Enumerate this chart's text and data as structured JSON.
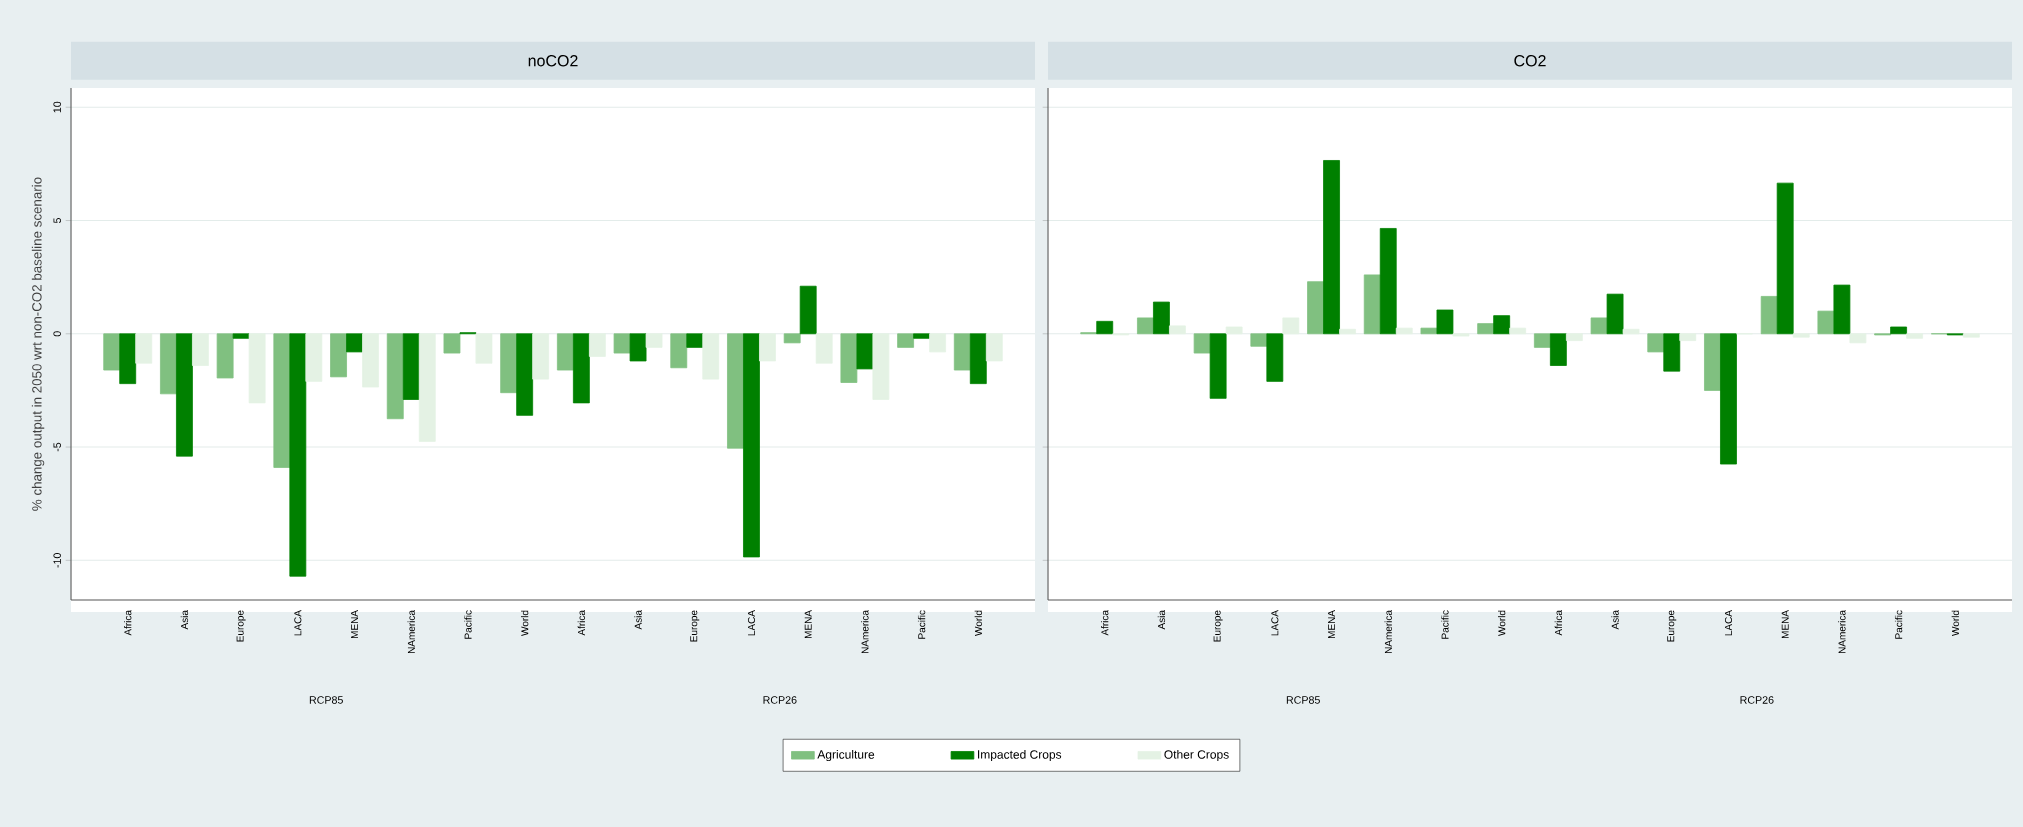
{
  "chart_data": [
    {
      "type": "bar",
      "title": "noCO2",
      "ylabel": "% change output in 2050 wrt non-CO2 baseline scenario",
      "categories": [
        "Africa",
        "Asia",
        "Europe",
        "LACA",
        "MENA",
        "NAmerica",
        "Pacific",
        "World",
        "Africa",
        "Asia",
        "Europe",
        "LACA",
        "MENA",
        "NAmerica",
        "Pacific",
        "World"
      ],
      "series": [
        {
          "name": "Agriculture",
          "color": "#80c080",
          "values": [
            -1.6,
            -2.65,
            -1.95,
            -5.9,
            -1.9,
            -3.75,
            -0.85,
            -2.6,
            -1.6,
            -0.85,
            -1.5,
            -5.05,
            -0.4,
            -2.15,
            -0.6,
            -1.6
          ]
        },
        {
          "name": "Impacted Crops",
          "color": "#008000",
          "values": [
            -2.2,
            -5.4,
            -0.2,
            -10.7,
            -0.8,
            -2.9,
            0.05,
            -3.6,
            -3.05,
            -1.2,
            -0.6,
            -9.85,
            2.1,
            -1.55,
            -0.2,
            -2.2
          ]
        },
        {
          "name": "Other Crops",
          "color": "#e4f2e4",
          "values": [
            -1.3,
            -1.4,
            -3.05,
            -2.1,
            -2.35,
            -4.75,
            -1.3,
            -2.0,
            -1.0,
            -0.6,
            -2.0,
            -1.2,
            -1.3,
            -2.9,
            -0.8,
            -1.2
          ]
        }
      ],
      "ylim": [
        -11.75,
        10.85
      ],
      "yticks": [
        -10,
        -5,
        0,
        5,
        10
      ],
      "grid": "y",
      "legend": "bottom",
      "annotations": [
        "RCP85",
        "RCP26"
      ]
    },
    {
      "type": "bar",
      "title": "CO2",
      "categories": [
        "Africa",
        "Asia",
        "Europe",
        "LACA",
        "MENA",
        "NAmerica",
        "Pacific",
        "World",
        "Africa",
        "Asia",
        "Europe",
        "LACA",
        "MENA",
        "NAmerica",
        "Pacific",
        "World"
      ],
      "series": [
        {
          "color": "#80c080",
          "values": [
            0.05,
            0.7,
            -0.85,
            -0.55,
            2.3,
            2.6,
            0.25,
            0.45,
            -0.6,
            0.7,
            -0.8,
            -2.5,
            1.65,
            1.0,
            -0.05,
            0.0
          ]
        },
        {
          "color": "#008000",
          "values": [
            0.55,
            1.4,
            -2.85,
            -2.1,
            7.65,
            4.65,
            1.05,
            0.8,
            -1.4,
            1.75,
            -1.65,
            -5.75,
            6.65,
            2.15,
            0.3,
            -0.05
          ]
        },
        {
          "color": "#e4f2e4",
          "values": [
            -0.05,
            0.35,
            0.3,
            0.7,
            0.2,
            0.25,
            -0.1,
            0.25,
            -0.3,
            0.2,
            -0.3,
            0.0,
            -0.15,
            -0.4,
            -0.2,
            -0.15
          ]
        }
      ],
      "ylim": [
        -11.75,
        10.85
      ],
      "yticks": [
        -10,
        -5,
        0,
        5,
        10
      ],
      "grid": "y",
      "tick_labels": "x",
      "annotations": [
        "RCP85",
        "RCP26"
      ]
    }
  ]
}
